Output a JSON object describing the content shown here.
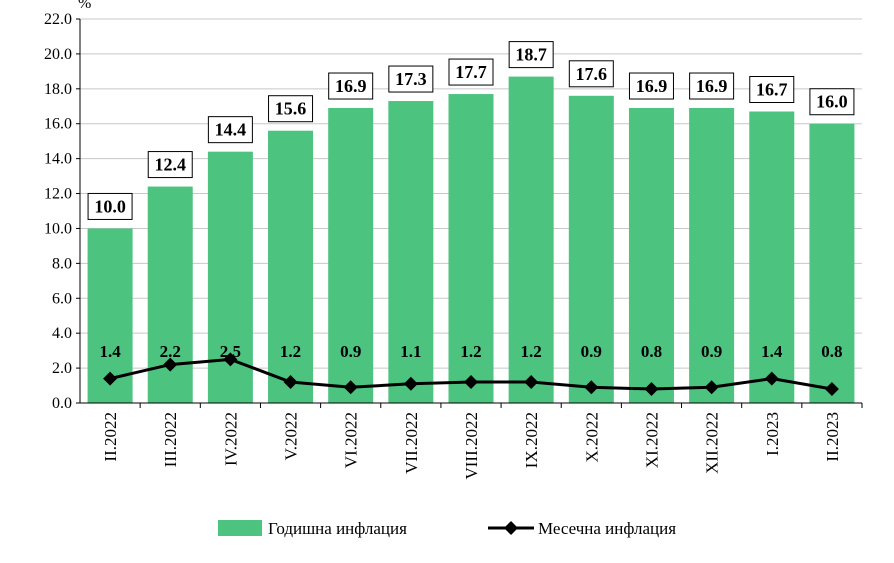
{
  "chart_data": {
    "type": "bar",
    "ylabel": "%",
    "ylim": [
      0,
      22
    ],
    "ytick_step": 2,
    "yticks": [
      "0.0",
      "2.0",
      "4.0",
      "6.0",
      "8.0",
      "10.0",
      "12.0",
      "14.0",
      "16.0",
      "18.0",
      "20.0",
      "22.0"
    ],
    "grid": true,
    "legend_position": "bottom",
    "categories": [
      "II.2022",
      "III.2022",
      "IV.2022",
      "V.2022",
      "VI.2022",
      "VII.2022",
      "VIII.2022",
      "IX.2022",
      "X.2022",
      "XI.2022",
      "XII.2022",
      "I.2023",
      "II.2023"
    ],
    "series": [
      {
        "name": "Годишна инфлация",
        "type": "bar",
        "color": "#4cc37f",
        "values": [
          10.0,
          12.4,
          14.4,
          15.6,
          16.9,
          17.3,
          17.7,
          18.7,
          17.6,
          16.9,
          16.9,
          16.7,
          16.0
        ],
        "labels": [
          "10.0",
          "12.4",
          "14.4",
          "15.6",
          "16.9",
          "17.3",
          "17.7",
          "18.7",
          "17.6",
          "16.9",
          "16.9",
          "16.7",
          "16.0"
        ]
      },
      {
        "name": "Месечна инфлация",
        "type": "line",
        "color": "#000000",
        "marker": "diamond",
        "values": [
          1.4,
          2.2,
          2.5,
          1.2,
          0.9,
          1.1,
          1.2,
          1.2,
          0.9,
          0.8,
          0.9,
          1.4,
          0.8
        ],
        "labels": [
          "1.4",
          "2.2",
          "2.5",
          "1.2",
          "0.9",
          "1.1",
          "1.2",
          "1.2",
          "0.9",
          "0.8",
          "0.9",
          "1.4",
          "0.8"
        ]
      }
    ]
  }
}
